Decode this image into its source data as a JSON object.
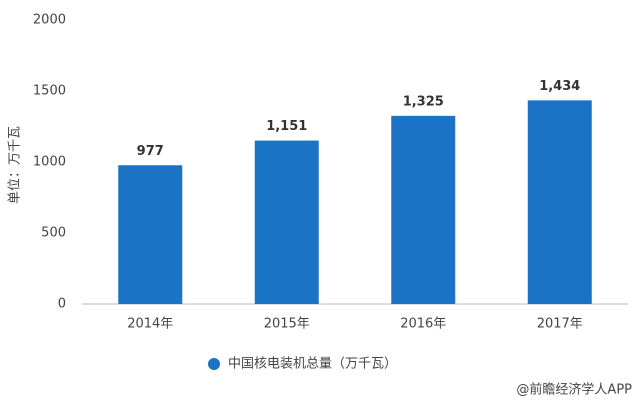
{
  "chart_data": {
    "type": "bar",
    "y_label": "单位：万千瓦",
    "categories": [
      "2014年",
      "2015年",
      "2016年",
      "2017年"
    ],
    "series": [
      {
        "name": "中国核电装机总量（万千瓦）",
        "color": "#1a73c4",
        "values": [
          977,
          1151,
          1325,
          1434
        ],
        "value_labels": [
          "977",
          "1,151",
          "1,325",
          "1,434"
        ]
      }
    ],
    "ylim": [
      0,
      2000
    ],
    "yticks": [
      0,
      500,
      1000,
      1500,
      2000
    ],
    "grid": false,
    "source": "@前瞻经济学人APP"
  }
}
